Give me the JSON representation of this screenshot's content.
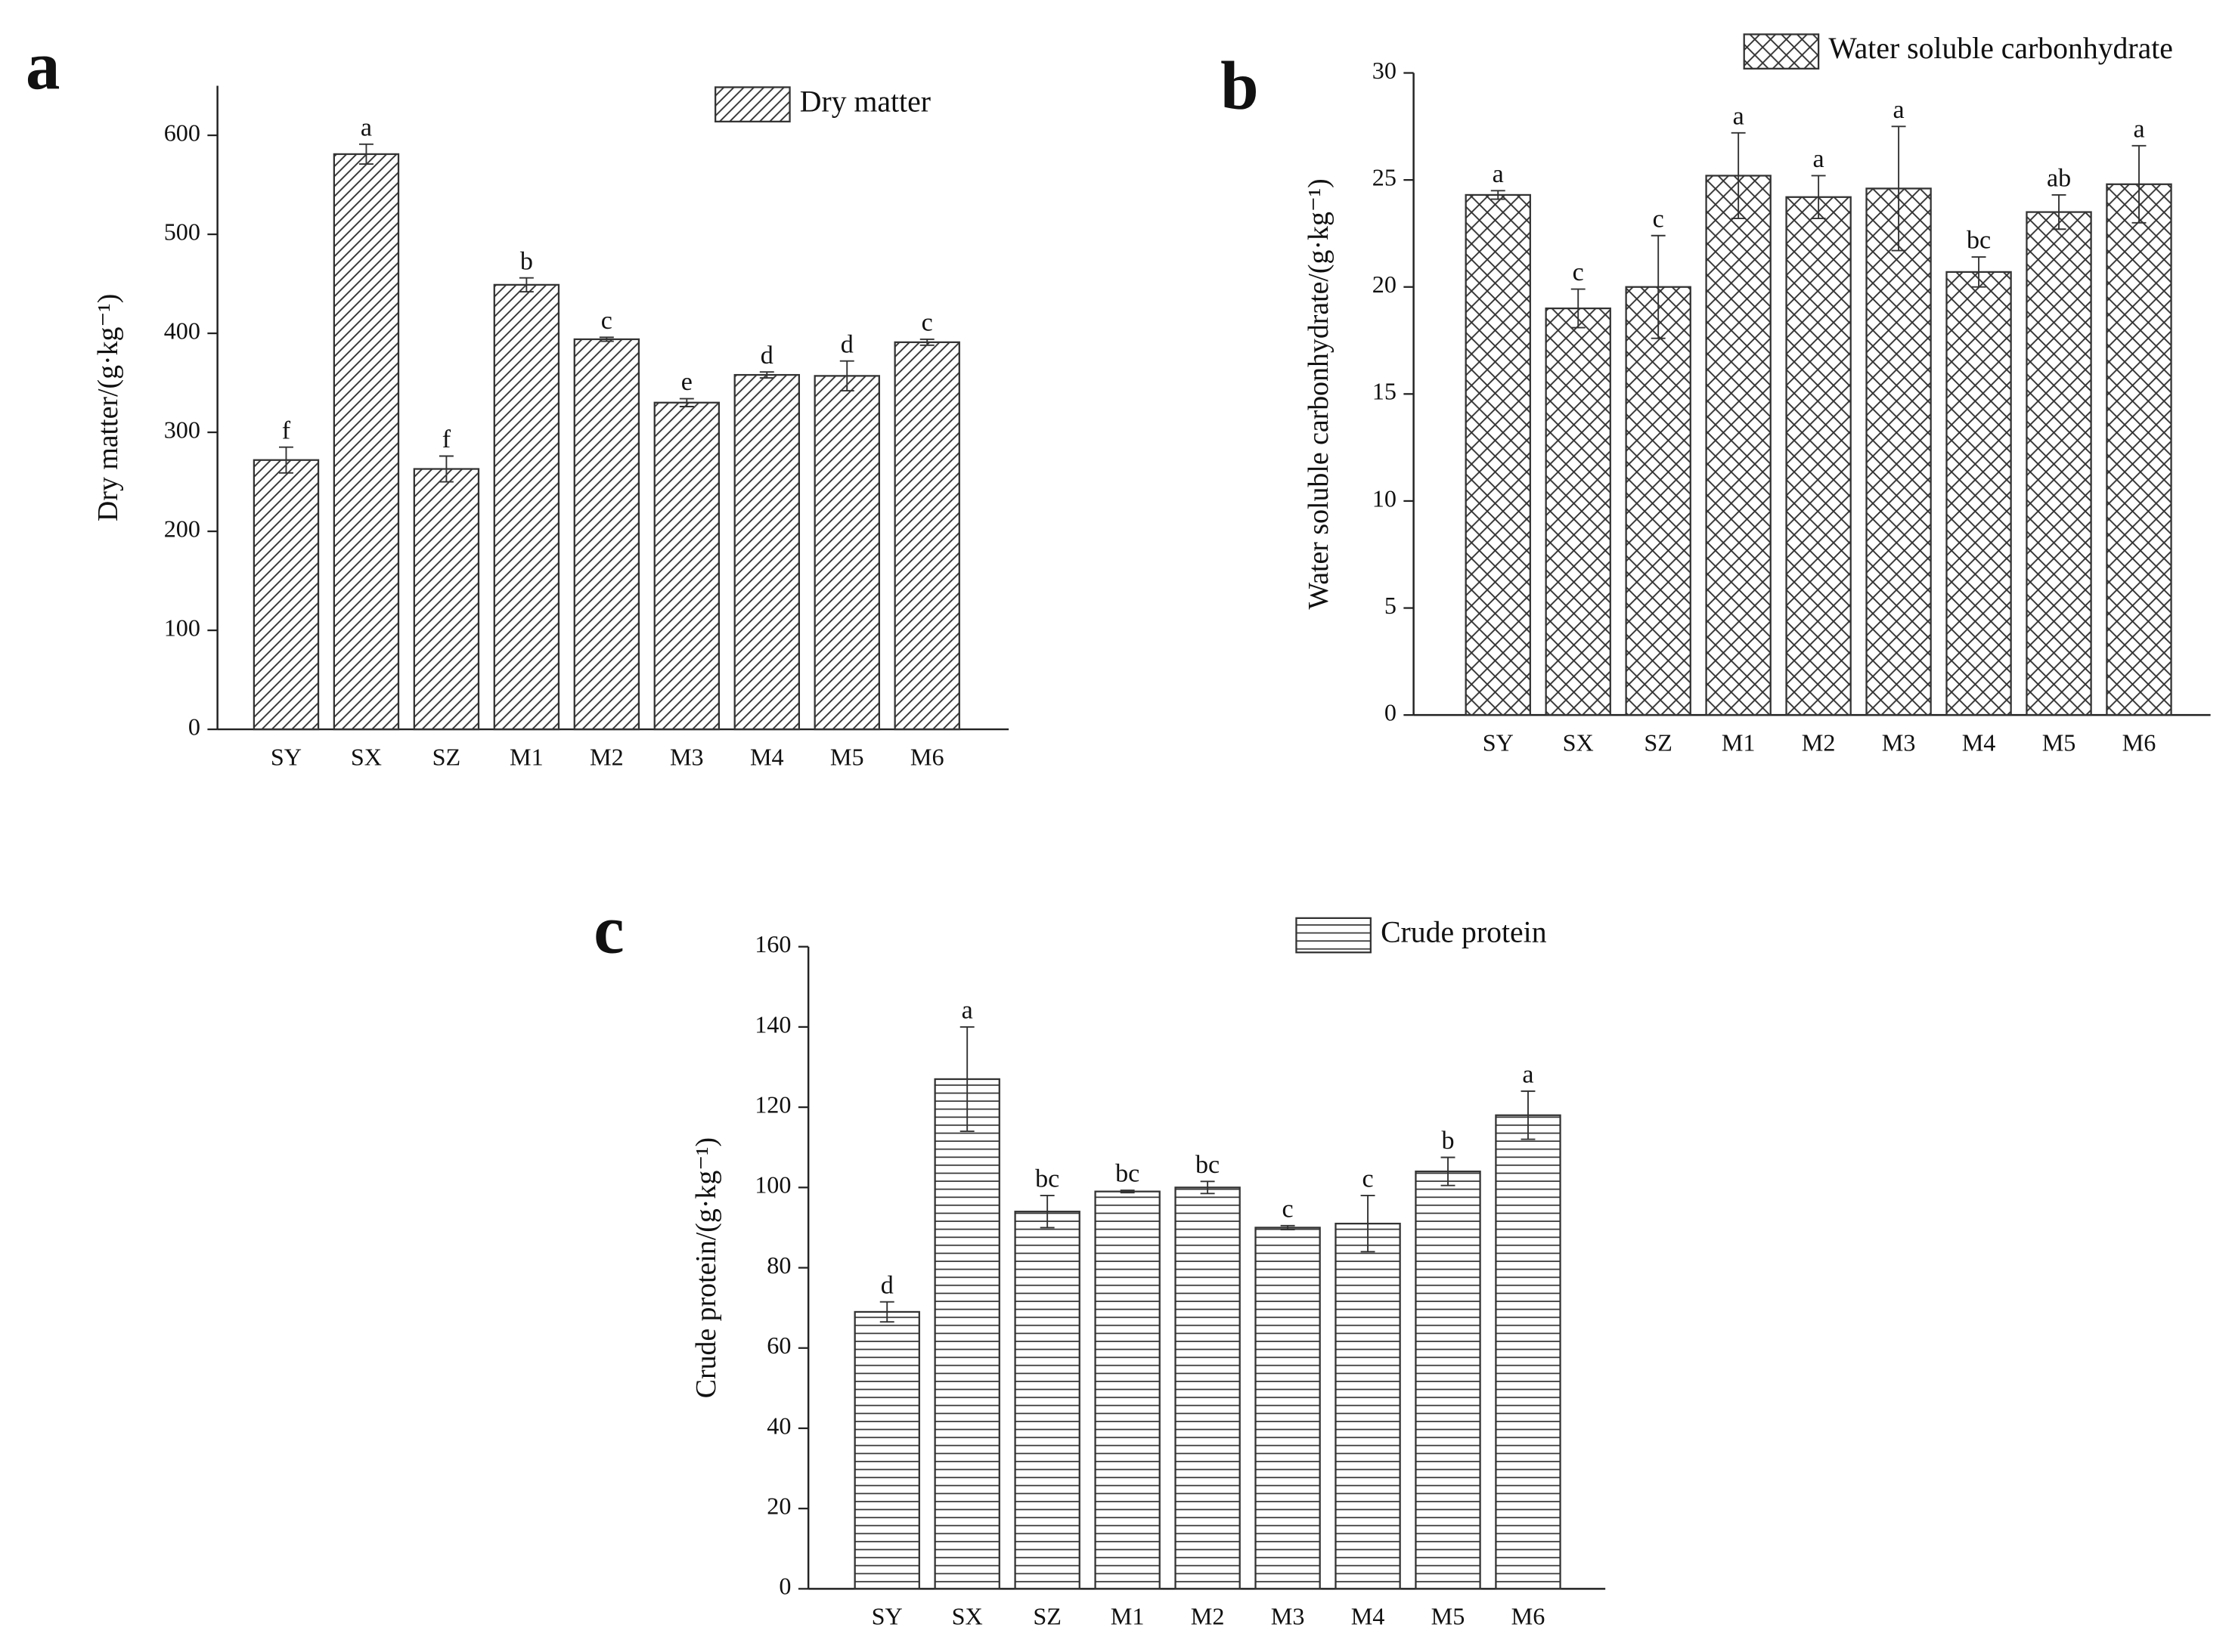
{
  "chart_data": [
    {
      "type": "bar",
      "panel_label": "a",
      "ylabel": "Dry matter/(g·kg⁻¹)",
      "categories": [
        "SY",
        "SX",
        "SZ",
        "M1",
        "M2",
        "M3",
        "M4",
        "M5",
        "M6"
      ],
      "series": [
        {
          "name": "Dry matter",
          "pattern": "diagonal",
          "color": "#333333",
          "values": [
            272,
            581,
            263,
            449,
            394,
            330,
            358,
            357,
            391
          ],
          "errors": [
            13,
            10,
            13,
            7,
            2,
            4,
            3,
            15,
            3
          ],
          "annotations": [
            "f",
            "a",
            "f",
            "b",
            "c",
            "e",
            "d",
            "d",
            "c"
          ]
        }
      ],
      "ylim": [
        0,
        650
      ],
      "yticks": [
        0,
        100,
        200,
        300,
        400,
        500,
        600
      ],
      "legend": "upper right"
    },
    {
      "type": "bar",
      "panel_label": "b",
      "ylabel": "Water soluble carbonhydrate/(g·kg⁻¹)",
      "categories": [
        "SY",
        "SX",
        "SZ",
        "M1",
        "M2",
        "M3",
        "M4",
        "M5",
        "M6"
      ],
      "series": [
        {
          "name": "Water soluble carbonhydrate",
          "pattern": "crosshatch",
          "color": "#333333",
          "values": [
            24.3,
            19.0,
            20.0,
            25.2,
            24.2,
            24.6,
            20.7,
            23.5,
            24.8
          ],
          "errors": [
            0.2,
            0.9,
            2.4,
            2.0,
            1.0,
            2.9,
            0.7,
            0.8,
            1.8
          ],
          "annotations": [
            "a",
            "c",
            "c",
            "a",
            "a",
            "a",
            "bc",
            "ab",
            "a"
          ]
        }
      ],
      "ylim": [
        0,
        30
      ],
      "yticks": [
        0,
        5,
        10,
        15,
        20,
        25,
        30
      ],
      "legend": "upper right"
    },
    {
      "type": "bar",
      "panel_label": "c",
      "ylabel": "Crude protein/(g·kg⁻¹)",
      "categories": [
        "SY",
        "SX",
        "SZ",
        "M1",
        "M2",
        "M3",
        "M4",
        "M5",
        "M6"
      ],
      "series": [
        {
          "name": "Crude protein",
          "pattern": "horizontal",
          "color": "#333333",
          "values": [
            69,
            127,
            94,
            99,
            100,
            90,
            91,
            104,
            118
          ],
          "errors": [
            2.5,
            13,
            4,
            0.3,
            1.5,
            0.5,
            7,
            3.5,
            6
          ],
          "annotations": [
            "d",
            "a",
            "bc",
            "bc",
            "bc",
            "c",
            "c",
            "b",
            "a"
          ]
        }
      ],
      "ylim": [
        0,
        160
      ],
      "yticks": [
        0,
        20,
        40,
        60,
        80,
        100,
        120,
        140,
        160
      ],
      "legend": "upper right"
    }
  ]
}
